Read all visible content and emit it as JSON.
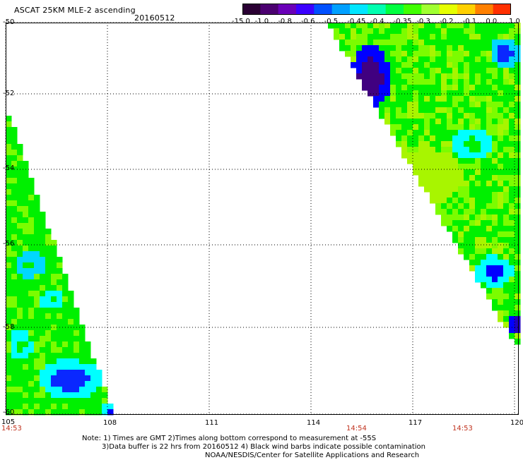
{
  "header": {
    "title": "ASCAT 25KM MLE-2 ascending",
    "date": "20160512"
  },
  "colorbar": {
    "labels": [
      "-15.0",
      "-1.0",
      "-0.8",
      "-0.6",
      "-0.5",
      "-0.45",
      "-0.4",
      "-0.35",
      "-0.3",
      "-0.2",
      "-0.1",
      "0.0",
      "1.0"
    ],
    "colors": [
      "#2a0033",
      "#4b0070",
      "#6a00b8",
      "#3b00ff",
      "#0050ff",
      "#00a0ff",
      "#00e6ff",
      "#00ffb0",
      "#00ff40",
      "#40ff00",
      "#a0ff30",
      "#e6ff00",
      "#ffd000",
      "#ff8000",
      "#ff3000"
    ]
  },
  "map": {
    "lat_labels": [
      "-50",
      "-52",
      "-54",
      "-56",
      "-58",
      "-60"
    ],
    "lon_labels": [
      "105",
      "108",
      "111",
      "114",
      "117",
      "120"
    ],
    "times": [
      "14:53",
      "14:54",
      "14:53"
    ],
    "colors": {
      "green": "#00f000",
      "lime": "#7cfc00",
      "yellowgreen": "#a8f500",
      "cyan": "#00ffff",
      "aqua": "#00d8ff",
      "blue": "#0000ff",
      "medblue": "#0a28ff",
      "navy": "#2000c0",
      "purple": "#400080"
    }
  },
  "notes": {
    "line1": "Note: 1) Times are GMT 2)Times along bottom correspond to measurement at -55S",
    "line2": "3)Data buffer is 22 hrs from 20160512 4) Black wind barbs indicate possible contamination",
    "line3": "NOAA/NESDIS/Center for Satellite Applications and Research"
  }
}
